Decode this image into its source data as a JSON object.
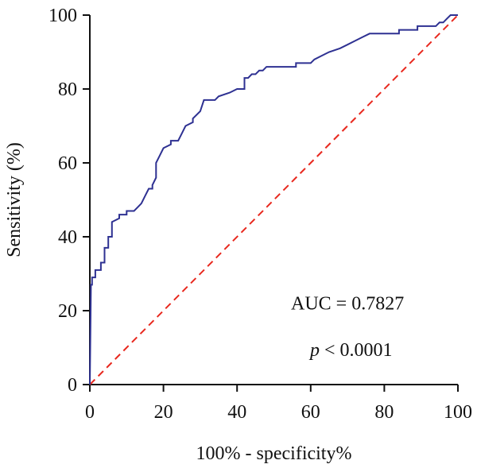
{
  "chart_data": {
    "type": "line",
    "xlabel": "100% - specificity%",
    "ylabel": "Sensitivity (%)",
    "xlim": [
      0,
      100
    ],
    "ylim": [
      0,
      100
    ],
    "xticks": [
      0,
      20,
      40,
      60,
      80,
      100
    ],
    "yticks": [
      0,
      20,
      40,
      60,
      80,
      100
    ],
    "grid": false,
    "series": [
      {
        "color": "#2e3192",
        "style": "solid",
        "points": [
          [
            0,
            0
          ],
          [
            0.3,
            27
          ],
          [
            0.6,
            27
          ],
          [
            0.6,
            29
          ],
          [
            1.5,
            29
          ],
          [
            1.5,
            31
          ],
          [
            3,
            31
          ],
          [
            3,
            33
          ],
          [
            4,
            33
          ],
          [
            4,
            37
          ],
          [
            5,
            37
          ],
          [
            5,
            40
          ],
          [
            6,
            40
          ],
          [
            6,
            44
          ],
          [
            8,
            45
          ],
          [
            8,
            46
          ],
          [
            10,
            46
          ],
          [
            10,
            47
          ],
          [
            12,
            47
          ],
          [
            13,
            48
          ],
          [
            14,
            49
          ],
          [
            15,
            51
          ],
          [
            16,
            53
          ],
          [
            17,
            53
          ],
          [
            17,
            54
          ],
          [
            18,
            56
          ],
          [
            18,
            60
          ],
          [
            19,
            62
          ],
          [
            20,
            64
          ],
          [
            22,
            65
          ],
          [
            22,
            66
          ],
          [
            24,
            66
          ],
          [
            25,
            68
          ],
          [
            26,
            70
          ],
          [
            28,
            71
          ],
          [
            28,
            72
          ],
          [
            30,
            74
          ],
          [
            31,
            77
          ],
          [
            34,
            77
          ],
          [
            35,
            78
          ],
          [
            38,
            79
          ],
          [
            40,
            80
          ],
          [
            42,
            80
          ],
          [
            42,
            83
          ],
          [
            43,
            83
          ],
          [
            44,
            84
          ],
          [
            45,
            84
          ],
          [
            46,
            85
          ],
          [
            47,
            85
          ],
          [
            48,
            86
          ],
          [
            56,
            86
          ],
          [
            56,
            87
          ],
          [
            60,
            87
          ],
          [
            61,
            88
          ],
          [
            63,
            89
          ],
          [
            65,
            90
          ],
          [
            68,
            91
          ],
          [
            70,
            92
          ],
          [
            72,
            93
          ],
          [
            74,
            94
          ],
          [
            76,
            95
          ],
          [
            84,
            95
          ],
          [
            84,
            96
          ],
          [
            89,
            96
          ],
          [
            89,
            97
          ],
          [
            94,
            97
          ],
          [
            95,
            98
          ],
          [
            96,
            98
          ],
          [
            97,
            99
          ],
          [
            98,
            100
          ],
          [
            100,
            100
          ]
        ]
      },
      {
        "color": "#e8281e",
        "style": "dashed",
        "points": [
          [
            0,
            0
          ],
          [
            100,
            100
          ]
        ]
      }
    ],
    "annotations": [
      {
        "text": "AUC = 0.7827",
        "x": 70,
        "y": 22,
        "italic": false
      },
      {
        "text_italic": "p",
        "text": " < 0.0001",
        "x": 71,
        "y": 9.5
      }
    ]
  }
}
